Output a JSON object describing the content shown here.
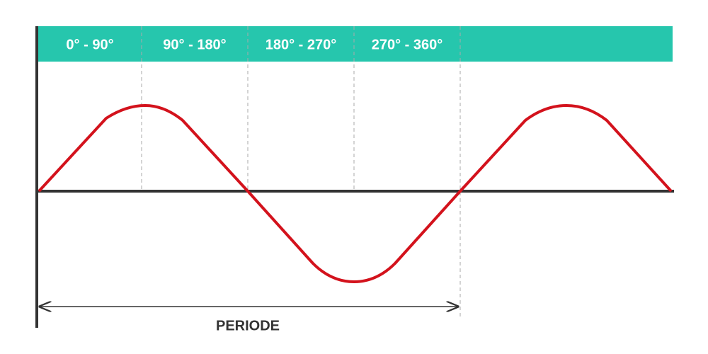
{
  "header": {
    "segments": [
      "0° - 90°",
      "90° - 180°",
      "180° - 270°",
      "270° - 360°"
    ]
  },
  "period_label": "PERIODE"
}
